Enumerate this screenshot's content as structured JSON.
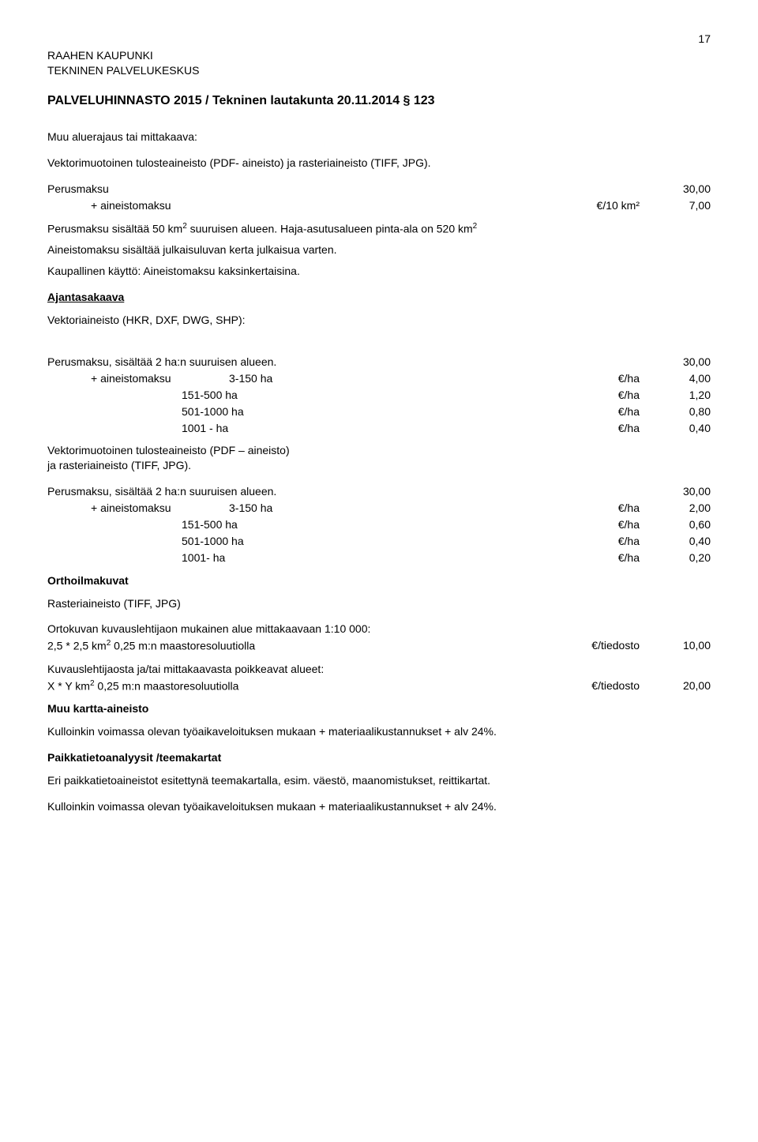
{
  "page_number": "17",
  "org": "RAAHEN KAUPUNKI",
  "dept": "TEKNINEN PALVELUKESKUS",
  "doc_title": "PALVELUHINNASTO 2015 / Tekninen lautakunta 20.11.2014 § 123",
  "sec1_title": "Muu aluerajaus tai mittakaava:",
  "sec1_desc": "Vektorimuotoinen tulosteaineisto (PDF- aineisto) ja rasteriaineisto (TIFF, JPG).",
  "sec1_rows": [
    {
      "lbl": "Perusmaksu",
      "unit": "",
      "val": "30,00",
      "indent": ""
    },
    {
      "lbl": "+ aineistomaksu",
      "unit": "€/10 km²",
      "val": "7,00",
      "indent": "indent1"
    }
  ],
  "sec1_note1a": "Perusmaksu sisältää  50 km",
  "sec1_note1b": " suuruisen alueen. Haja-asutusalueen pinta-ala on 520 km",
  "sec1_note2": "Aineistomaksu sisältää julkaisuluvan kerta julkaisua varten.",
  "sec1_note3": "Kaupallinen käyttö: Aineistomaksu kaksinkertaisina.",
  "sec2_title": "Ajantasakaava",
  "sec2_sub": "Vektoriaineisto (HKR, DXF, DWG, SHP):",
  "sec2_head": {
    "lbl": "Perusmaksu, sisältää 2 ha:n suuruisen alueen.",
    "val": "30,00"
  },
  "sec2_rows": [
    {
      "lbl": "+ aineistomaksu",
      "mid": "3-150 ha",
      "unit": "€/ha",
      "val": "4,00",
      "indent": "indent1"
    },
    {
      "lbl": "",
      "mid": "151-500 ha",
      "unit": "€/ha",
      "val": "1,20",
      "indent": "indent2"
    },
    {
      "lbl": "",
      "mid": "501-1000 ha",
      "unit": "€/ha",
      "val": "0,80",
      "indent": "indent2"
    },
    {
      "lbl": "",
      "mid": "1001 -    ha",
      "unit": "€/ha",
      "val": "0,40",
      "indent": "indent2"
    }
  ],
  "sec3_sub1": "Vektorimuotoinen tulosteaineisto (PDF – aineisto)",
  "sec3_sub2": "ja rasteriaineisto (TIFF, JPG).",
  "sec3_head": {
    "lbl": "Perusmaksu, sisältää 2 ha:n suuruisen alueen.",
    "val": "30,00"
  },
  "sec3_rows": [
    {
      "lbl": "+ aineistomaksu",
      "mid": "3-150 ha",
      "unit": "€/ha",
      "val": "2,00",
      "indent": "indent1"
    },
    {
      "lbl": "",
      "mid": "151-500 ha",
      "unit": "€/ha",
      "val": "0,60",
      "indent": "indent2"
    },
    {
      "lbl": "",
      "mid": "501-1000 ha",
      "unit": "€/ha",
      "val": "0,40",
      "indent": "indent2"
    },
    {
      "lbl": "",
      "mid": "1001-    ha",
      "unit": "€/ha",
      "val": "0,20",
      "indent": "indent2"
    }
  ],
  "sec4_title": "Orthoilmakuvat",
  "sec4_sub": "Rasteriaineisto (TIFF, JPG)",
  "sec4_p1": "Ortokuvan kuvauslehtijaon mukainen alue mittakaavaan 1:10 000:",
  "sec4_r1": {
    "lbl_a": "2,5 * 2,5 km",
    "lbl_b": " 0,25 m:n  maastoresoluutiolla",
    "unit": "€/tiedosto",
    "val": "10,00"
  },
  "sec4_p2": "Kuvauslehtijaosta ja/tai mittakaavasta poikkeavat alueet:",
  "sec4_r2": {
    "lbl_a": "X * Y  km",
    "lbl_b": " 0,25 m:n maastoresoluutiolla",
    "unit": "€/tiedosto",
    "val": "20,00"
  },
  "sec5_title": "Muu kartta-aineisto",
  "sec5_p": "Kulloinkin voimassa olevan työaikaveloituksen mukaan + materiaalikustannukset + alv 24%.",
  "sec6_title": "Paikkatietoanalyysit /teemakartat",
  "sec6_p1": "Eri paikkatietoaineistot esitettynä teemakartalla, esim. väestö, maanomistukset, reittikartat.",
  "sec6_p2": "Kulloinkin voimassa olevan työaikaveloituksen mukaan + materiaalikustannukset + alv 24%."
}
